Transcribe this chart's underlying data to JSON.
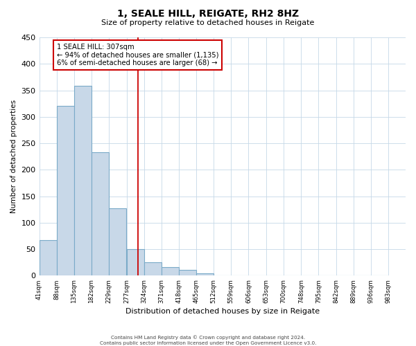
{
  "title": "1, SEALE HILL, REIGATE, RH2 8HZ",
  "subtitle": "Size of property relative to detached houses in Reigate",
  "xlabel": "Distribution of detached houses by size in Reigate",
  "ylabel": "Number of detached properties",
  "bar_edges": [
    41,
    88,
    135,
    182,
    229,
    277,
    324,
    371,
    418,
    465,
    512,
    559,
    606,
    653,
    700,
    748,
    795,
    842,
    889,
    936,
    983
  ],
  "bar_heights": [
    67,
    320,
    358,
    233,
    127,
    50,
    25,
    16,
    11,
    4,
    0,
    1,
    0,
    0,
    0,
    0,
    1,
    0,
    0,
    1
  ],
  "bar_color": "#c8d8e8",
  "bar_edge_color": "#7aaac8",
  "ylim": [
    0,
    450
  ],
  "yticks": [
    0,
    50,
    100,
    150,
    200,
    250,
    300,
    350,
    400,
    450
  ],
  "property_line_x": 307,
  "property_line_color": "#cc0000",
  "annotation_line1": "1 SEALE HILL: 307sqm",
  "annotation_line2": "← 94% of detached houses are smaller (1,135)",
  "annotation_line3": "6% of semi-detached houses are larger (68) →",
  "annotation_box_color": "#cc0000",
  "grid_color": "#c5d8e8",
  "background_color": "#ffffff",
  "footer_line1": "Contains HM Land Registry data © Crown copyright and database right 2024.",
  "footer_line2": "Contains public sector information licensed under the Open Government Licence v3.0.",
  "tick_labels": [
    "41sqm",
    "88sqm",
    "135sqm",
    "182sqm",
    "229sqm",
    "277sqm",
    "324sqm",
    "371sqm",
    "418sqm",
    "465sqm",
    "512sqm",
    "559sqm",
    "606sqm",
    "653sqm",
    "700sqm",
    "748sqm",
    "795sqm",
    "842sqm",
    "889sqm",
    "936sqm",
    "983sqm"
  ]
}
